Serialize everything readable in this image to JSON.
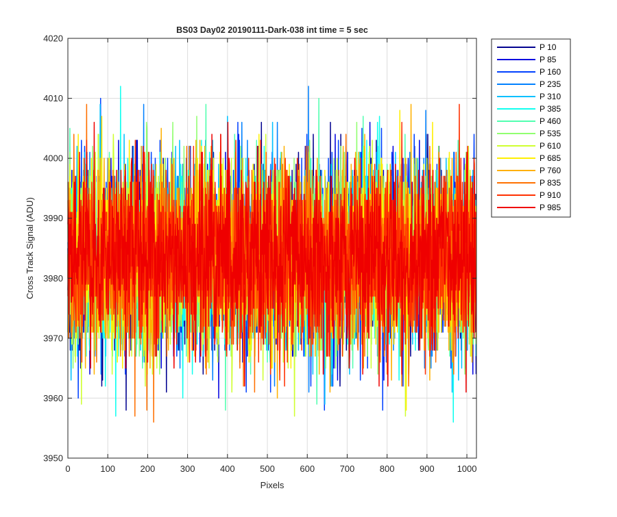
{
  "chart_data": {
    "type": "line",
    "title": "BS03 Day02 20190111-Dark-038 int time = 5 sec",
    "xlabel": "Pixels",
    "ylabel": "Cross Track Signal (ADU)",
    "xlim": [
      0,
      1024
    ],
    "ylim": [
      3950,
      4020
    ],
    "xticks": [
      0,
      100,
      200,
      300,
      400,
      500,
      600,
      700,
      800,
      900,
      1000
    ],
    "yticks": [
      3950,
      3960,
      3970,
      3980,
      3990,
      4000,
      4010,
      4020
    ],
    "grid": true,
    "legend_position": "outside-top-right",
    "n_points": 1024,
    "series": [
      {
        "name": "P 10",
        "color": "#00008f",
        "mean": 3983.5,
        "std": 7.5,
        "min": 3958,
        "max": 4019
      },
      {
        "name": "P 85",
        "color": "#0000e0",
        "mean": 3983.5,
        "std": 7.5,
        "min": 3958,
        "max": 4015
      },
      {
        "name": "P 160",
        "color": "#0040ff",
        "mean": 3983.5,
        "std": 7.5,
        "min": 3958,
        "max": 4010
      },
      {
        "name": "P 235",
        "color": "#0080ff",
        "mean": 3983.5,
        "std": 7.5,
        "min": 3956,
        "max": 4015
      },
      {
        "name": "P 310",
        "color": "#00c0ff",
        "mean": 3983.5,
        "std": 7.5,
        "min": 3958,
        "max": 4013
      },
      {
        "name": "P 385",
        "color": "#10ffef",
        "mean": 3983.5,
        "std": 7.5,
        "min": 3956,
        "max": 4012
      },
      {
        "name": "P 460",
        "color": "#50ffaf",
        "mean": 3983.5,
        "std": 7.5,
        "min": 3958,
        "max": 4010
      },
      {
        "name": "P 535",
        "color": "#90ff6f",
        "mean": 3983.5,
        "std": 7.5,
        "min": 3957,
        "max": 4010
      },
      {
        "name": "P 610",
        "color": "#cfff30",
        "mean": 3983.5,
        "std": 7.5,
        "min": 3957,
        "max": 4018
      },
      {
        "name": "P 685",
        "color": "#ffef00",
        "mean": 3983.5,
        "std": 7.5,
        "min": 3958,
        "max": 4008
      },
      {
        "name": "P 760",
        "color": "#ffb000",
        "mean": 3983.5,
        "std": 7.5,
        "min": 3955,
        "max": 4011
      },
      {
        "name": "P 835",
        "color": "#ff7000",
        "mean": 3983.5,
        "std": 7.5,
        "min": 3956,
        "max": 4011
      },
      {
        "name": "P 910",
        "color": "#ff3000",
        "mean": 3983.5,
        "std": 7.5,
        "min": 3954,
        "max": 4010
      },
      {
        "name": "P 985",
        "color": "#ef0000",
        "mean": 3983.5,
        "std": 7.5,
        "min": 3952,
        "max": 4013
      }
    ]
  }
}
